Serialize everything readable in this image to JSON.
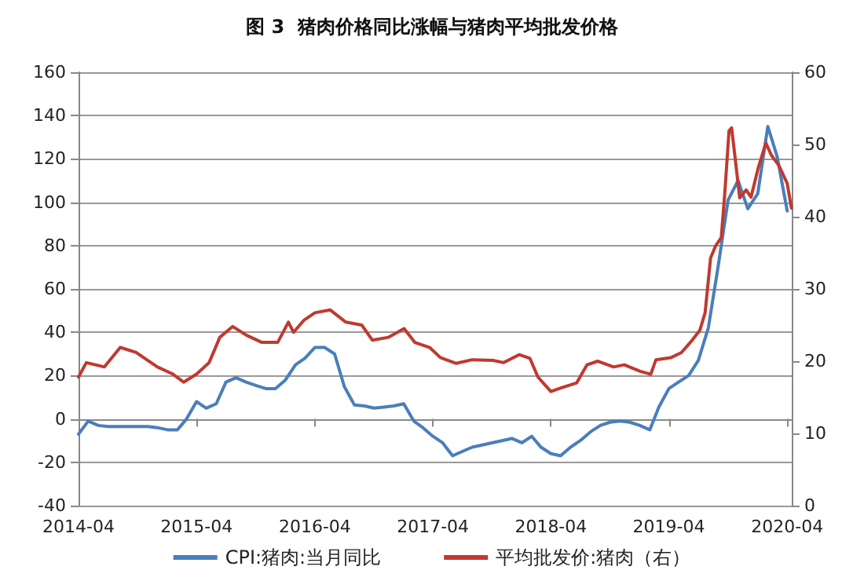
{
  "chart_data": {
    "type": "line",
    "title": "图 3  猪肉价格同比涨幅与猪肉平均批发价格",
    "xlim": [
      "2014-04",
      "2020-04-15"
    ],
    "xticks": [
      "2014-04",
      "2015-04",
      "2016-04",
      "2017-04",
      "2018-04",
      "2019-04",
      "2020-04"
    ],
    "ylim": [
      -40,
      160
    ],
    "yticks": [
      -40,
      -20,
      0,
      20,
      40,
      60,
      80,
      100,
      120,
      140,
      160
    ],
    "y2lim": [
      0,
      60
    ],
    "y2ticks": [
      0,
      10,
      20,
      30,
      40,
      50,
      60
    ],
    "grid": "y",
    "legend": "bottom",
    "marker": "none",
    "line_style": "solid",
    "series": [
      {
        "name": "CPI:猪肉:当月同比",
        "color": "#4a7ebb",
        "x": [
          "2014-04",
          "2014-05",
          "2014-06",
          "2014-07",
          "2014-08",
          "2014-09",
          "2014-10",
          "2014-11",
          "2014-12",
          "2015-01",
          "2015-02",
          "2015-03",
          "2015-04",
          "2015-05",
          "2015-06",
          "2015-07",
          "2015-08",
          "2015-09",
          "2015-10",
          "2015-11",
          "2015-12",
          "2016-01",
          "2016-02",
          "2016-03",
          "2016-04",
          "2016-05",
          "2016-06",
          "2016-07",
          "2016-08",
          "2016-09",
          "2016-10",
          "2016-11",
          "2016-12",
          "2017-01",
          "2017-02",
          "2017-03",
          "2017-04",
          "2017-05",
          "2017-06",
          "2017-07",
          "2017-08",
          "2017-09",
          "2017-10",
          "2017-11",
          "2017-12",
          "2018-01",
          "2018-02",
          "2018-03",
          "2018-04",
          "2018-05",
          "2018-06",
          "2018-07",
          "2018-08",
          "2018-09",
          "2018-10",
          "2018-11",
          "2018-12",
          "2019-01",
          "2019-02",
          "2019-03",
          "2019-04",
          "2019-05",
          "2019-06",
          "2019-07",
          "2019-08",
          "2019-09",
          "2019-10",
          "2019-11",
          "2019-12",
          "2020-01",
          "2020-02",
          "2020-03",
          "2020-04"
        ],
        "values": [
          -7,
          -1,
          -3,
          -3.5,
          -3.5,
          -3.5,
          -3.5,
          -3.5,
          -4,
          -5,
          -5,
          0,
          8,
          5,
          7,
          17,
          19,
          17,
          15.5,
          14,
          14,
          18,
          25,
          28,
          33,
          33,
          30,
          15,
          6.5,
          6,
          5,
          5.5,
          6,
          7,
          -1,
          -4,
          -8,
          -11,
          -17,
          -15,
          -13,
          -12,
          -11,
          -10,
          -9,
          -11,
          -8,
          -13,
          -16,
          -17,
          -13,
          -10,
          -6,
          -3,
          -1.5,
          -1,
          -1.5,
          -3,
          -5,
          5.5,
          14,
          17,
          20,
          27,
          42,
          71,
          101,
          110,
          97,
          104,
          135,
          121,
          96
        ]
      },
      {
        "name": "平均批发价:猪肉（右）",
        "color": "#c0392f",
        "axis": "y2",
        "x": [
          "2014-04-01",
          "2014-04-25",
          "2014-06-20",
          "2014-08-08",
          "2014-09-26",
          "2014-12-01",
          "2015-01-18",
          "2015-02-20",
          "2015-04-01",
          "2015-05-10",
          "2015-06-12",
          "2015-07-22",
          "2015-09-02",
          "2015-10-20",
          "2015-12-08",
          "2016-01-10",
          "2016-01-26",
          "2016-02-28",
          "2016-04-01",
          "2016-05-18",
          "2016-07-06",
          "2016-08-24",
          "2016-09-26",
          "2016-11-14",
          "2017-01-02",
          "2017-02-04",
          "2017-03-22",
          "2017-04-24",
          "2017-06-12",
          "2017-08-01",
          "2017-10-04",
          "2017-11-06",
          "2017-12-24",
          "2018-01-26",
          "2018-02-20",
          "2018-04-01",
          "2018-05-02",
          "2018-06-20",
          "2018-07-22",
          "2018-08-24",
          "2018-10-12",
          "2018-11-14",
          "2019-01-02",
          "2019-02-04",
          "2019-02-20",
          "2019-04-08",
          "2019-05-10",
          "2019-06-12",
          "2019-07-06",
          "2019-07-22",
          "2019-08-08",
          "2019-08-24",
          "2019-09-10",
          "2019-09-21",
          "2019-10-04",
          "2019-10-12",
          "2019-10-23",
          "2019-11-06",
          "2019-11-26",
          "2019-12-11",
          "2020-01-02",
          "2020-01-26",
          "2020-02-12",
          "2020-03-06",
          "2020-04-01",
          "2020-04-14"
        ],
        "values": [
          17.8,
          19.8,
          19.2,
          21.9,
          21.2,
          19.2,
          18.2,
          17.1,
          18.2,
          19.8,
          23.3,
          24.8,
          23.6,
          22.6,
          22.6,
          25.4,
          24,
          25.7,
          26.7,
          27.1,
          25.4,
          25,
          22.9,
          23.3,
          24.5,
          22.6,
          21.9,
          20.5,
          19.7,
          20.2,
          20.1,
          19.8,
          20.9,
          20.4,
          17.8,
          15.8,
          16.3,
          17,
          19.5,
          20,
          19.2,
          19.5,
          18.6,
          18.2,
          20.2,
          20.5,
          21.2,
          22.9,
          24.3,
          26.7,
          34.3,
          36,
          37.1,
          43.3,
          51.9,
          52.3,
          48.1,
          42.6,
          43.7,
          42.7,
          46.7,
          50.2,
          48.5,
          47.1,
          44.6,
          41.2
        ]
      }
    ]
  }
}
